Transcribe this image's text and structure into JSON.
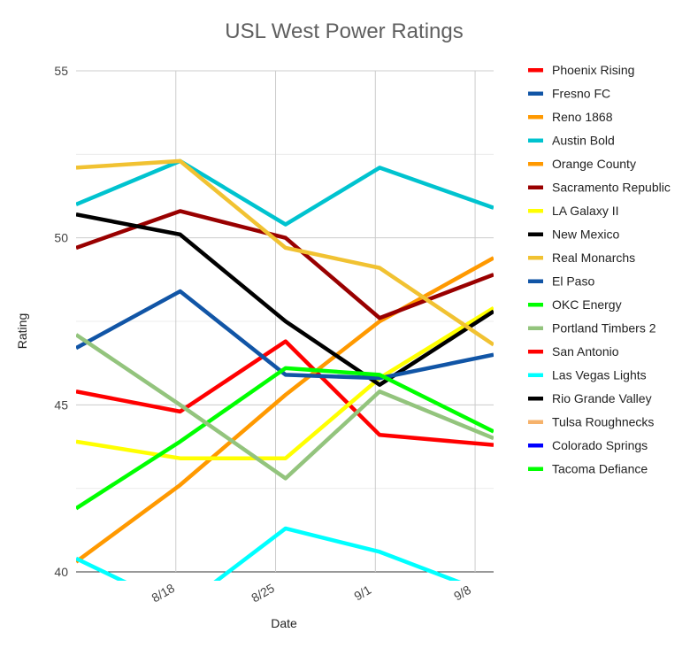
{
  "chart_data": {
    "type": "line",
    "title": "USL West Power Ratings",
    "xlabel": "Date",
    "ylabel": "Rating",
    "x_ticks": [
      "8/18",
      "8/25",
      "9/1",
      "9/8"
    ],
    "x_tick_days": [
      18,
      25,
      32,
      39
    ],
    "xlim_days": [
      11,
      40.3
    ],
    "ylim": [
      40,
      55
    ],
    "y_ticks": [
      40,
      45,
      50,
      55
    ],
    "x_unit_note": "August day-of-month (Sept 1 = 32)",
    "x": [
      11,
      18.3,
      25.7,
      32.3,
      40.3
    ],
    "grid": true,
    "legend_position": "right",
    "series": [
      {
        "name": "Phoenix Rising",
        "color": "#ff0000",
        "values": [
          45.4,
          44.8,
          46.9,
          44.1,
          43.8
        ]
      },
      {
        "name": "Fresno FC",
        "color": "#1155a6",
        "values": [
          null,
          null,
          null,
          null,
          null
        ]
      },
      {
        "name": "Reno 1868",
        "color": "#ff9900",
        "values": [
          40.3,
          42.6,
          45.3,
          47.5,
          49.4
        ]
      },
      {
        "name": "Austin Bold",
        "color": "#00c3cf",
        "values": [
          51.0,
          52.3,
          50.4,
          52.1,
          50.9
        ]
      },
      {
        "name": "Orange County",
        "color": "#ff9900",
        "values": [
          null,
          null,
          null,
          null,
          null
        ]
      },
      {
        "name": "Sacramento Republic",
        "color": "#990000",
        "values": [
          49.7,
          50.8,
          50.0,
          47.6,
          48.9
        ]
      },
      {
        "name": "LA Galaxy II",
        "color": "#ffff00",
        "values": [
          43.9,
          43.4,
          43.4,
          45.8,
          47.9
        ]
      },
      {
        "name": "New Mexico",
        "color": "#000000",
        "values": [
          50.7,
          50.1,
          47.5,
          45.6,
          47.8
        ]
      },
      {
        "name": "Real Monarchs",
        "color": "#f1c232",
        "values": [
          52.1,
          52.3,
          49.7,
          49.1,
          46.8
        ]
      },
      {
        "name": "El Paso",
        "color": "#1155a6",
        "values": [
          46.7,
          48.4,
          45.9,
          45.8,
          46.5
        ]
      },
      {
        "name": "OKC Energy",
        "color": "#00ff00",
        "values": [
          41.9,
          43.9,
          46.1,
          45.9,
          44.2
        ]
      },
      {
        "name": "Portland Timbers 2",
        "color": "#93c47d",
        "values": [
          47.1,
          45.0,
          42.8,
          45.4,
          44.0
        ]
      },
      {
        "name": "San Antonio",
        "color": "#ff0000",
        "values": [
          null,
          null,
          null,
          null,
          null
        ]
      },
      {
        "name": "Las Vegas Lights",
        "color": "#00ffff",
        "values": [
          40.4,
          38.9,
          41.3,
          40.6,
          39.3
        ]
      },
      {
        "name": "Rio Grande Valley",
        "color": "#000000",
        "values": [
          null,
          null,
          null,
          null,
          null
        ]
      },
      {
        "name": "Tulsa Roughnecks",
        "color": "#f6b26b",
        "values": [
          null,
          null,
          null,
          null,
          null
        ]
      },
      {
        "name": "Colorado Springs",
        "color": "#0000ff",
        "values": [
          null,
          null,
          null,
          null,
          null
        ]
      },
      {
        "name": "Tacoma Defiance",
        "color": "#00ff00",
        "values": [
          null,
          null,
          null,
          null,
          null
        ]
      }
    ]
  }
}
